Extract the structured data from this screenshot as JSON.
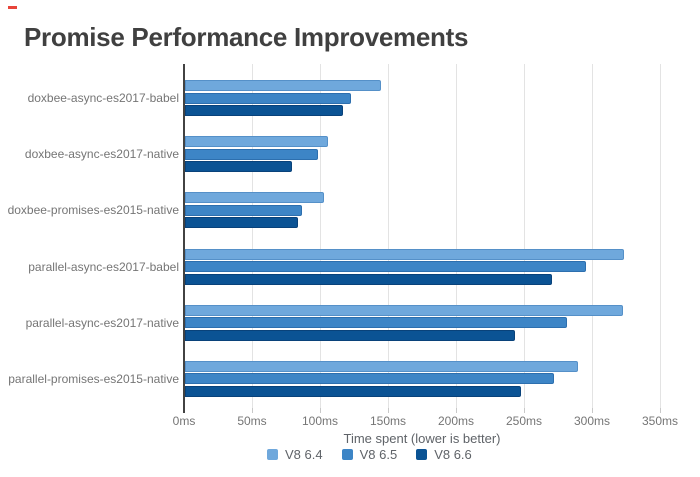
{
  "marker_color": "#e8443a",
  "chart_data": {
    "type": "bar",
    "orientation": "horizontal",
    "title": "Promise Performance Improvements",
    "xlabel": "Time spent (lower is better)",
    "x_unit": "ms",
    "xlim": [
      0,
      350
    ],
    "x_tick_step": 50,
    "x_tick_labels": [
      "0ms",
      "50ms",
      "100ms",
      "150ms",
      "200ms",
      "250ms",
      "300ms",
      "350ms"
    ],
    "grid": true,
    "legend_position": "bottom",
    "categories": [
      "doxbee-async-es2017-babel",
      "doxbee-async-es2017-native",
      "doxbee-promises-es2015-native",
      "parallel-async-es2017-babel",
      "parallel-async-es2017-native",
      "parallel-promises-es2015-native"
    ],
    "series": [
      {
        "name": "V8 6.4",
        "color": "#6fa8dc",
        "border_color": "#5590c8",
        "values": [
          144,
          105,
          102,
          323,
          322,
          289
        ]
      },
      {
        "name": "V8 6.5",
        "color": "#3d85c6",
        "border_color": "#2d6fae",
        "values": [
          122,
          98,
          86,
          295,
          281,
          271
        ]
      },
      {
        "name": "V8 6.6",
        "color": "#0b5394",
        "border_color": "#09427a",
        "values": [
          116,
          79,
          83,
          270,
          243,
          247
        ]
      }
    ]
  }
}
